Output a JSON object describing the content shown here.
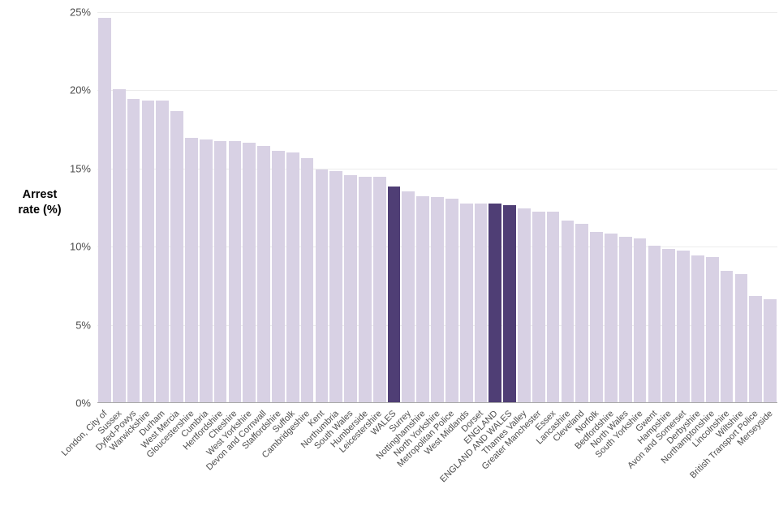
{
  "chart_data": {
    "type": "bar",
    "title": "",
    "xlabel": "",
    "ylabel": "Arrest rate (%)",
    "ylabel_lines": [
      "Arrest",
      "rate (%)"
    ],
    "ylim": [
      0,
      25
    ],
    "yticks": [
      0,
      5,
      10,
      15,
      20,
      25
    ],
    "ytick_labels": [
      "0%",
      "5%",
      "10%",
      "15%",
      "20%",
      "25%"
    ],
    "grid": true,
    "legend": "none",
    "categories": [
      "London, City of",
      "Sussex",
      "Dyfed-Powys",
      "Warwickshire",
      "Durham",
      "West Mercia",
      "Gloucestershire",
      "Cumbria",
      "Hertfordshire",
      "Cheshire",
      "West Yorkshire",
      "Devon and Cornwall",
      "Staffordshire",
      "Suffolk",
      "Cambridgeshire",
      "Kent",
      "Northumbria",
      "South Wales",
      "Humberside",
      "Leicestershire",
      "WALES",
      "Surrey",
      "Nottinghamshire",
      "North Yorkshire",
      "Metropolitan Police",
      "West Midlands",
      "Dorset",
      "ENGLAND",
      "ENGLAND AND WALES",
      "Thames Valley",
      "Greater Manchester",
      "Essex",
      "Lancashire",
      "Cleveland",
      "Norfolk",
      "Bedfordshire",
      "North Wales",
      "South Yorkshire",
      "Gwent",
      "Hampshire",
      "Avon and Somerset",
      "Derbyshire",
      "Northamptonshire",
      "Lincolnshire",
      "Wiltshire",
      "British Transport Police",
      "Merseyside"
    ],
    "values": [
      24.6,
      20.0,
      19.4,
      19.3,
      19.3,
      18.6,
      16.9,
      16.8,
      16.7,
      16.7,
      16.6,
      16.4,
      16.1,
      16.0,
      15.6,
      14.9,
      14.8,
      14.5,
      14.4,
      14.4,
      13.8,
      13.5,
      13.2,
      13.1,
      13.0,
      12.7,
      12.7,
      12.7,
      12.6,
      12.4,
      12.2,
      12.2,
      11.6,
      11.4,
      10.9,
      10.8,
      10.6,
      10.5,
      10.0,
      9.8,
      9.7,
      9.4,
      9.3,
      8.4,
      8.2,
      6.8,
      6.6
    ],
    "highlight_categories": [
      "WALES",
      "ENGLAND",
      "ENGLAND AND WALES"
    ],
    "colors": {
      "bar": "#d8d1e4",
      "highlight": "#4f3e75",
      "grid": "#ececec",
      "axis_line": "#a9a9a9",
      "axis_text": "#4d4d4d",
      "title_text": "#000000"
    }
  }
}
